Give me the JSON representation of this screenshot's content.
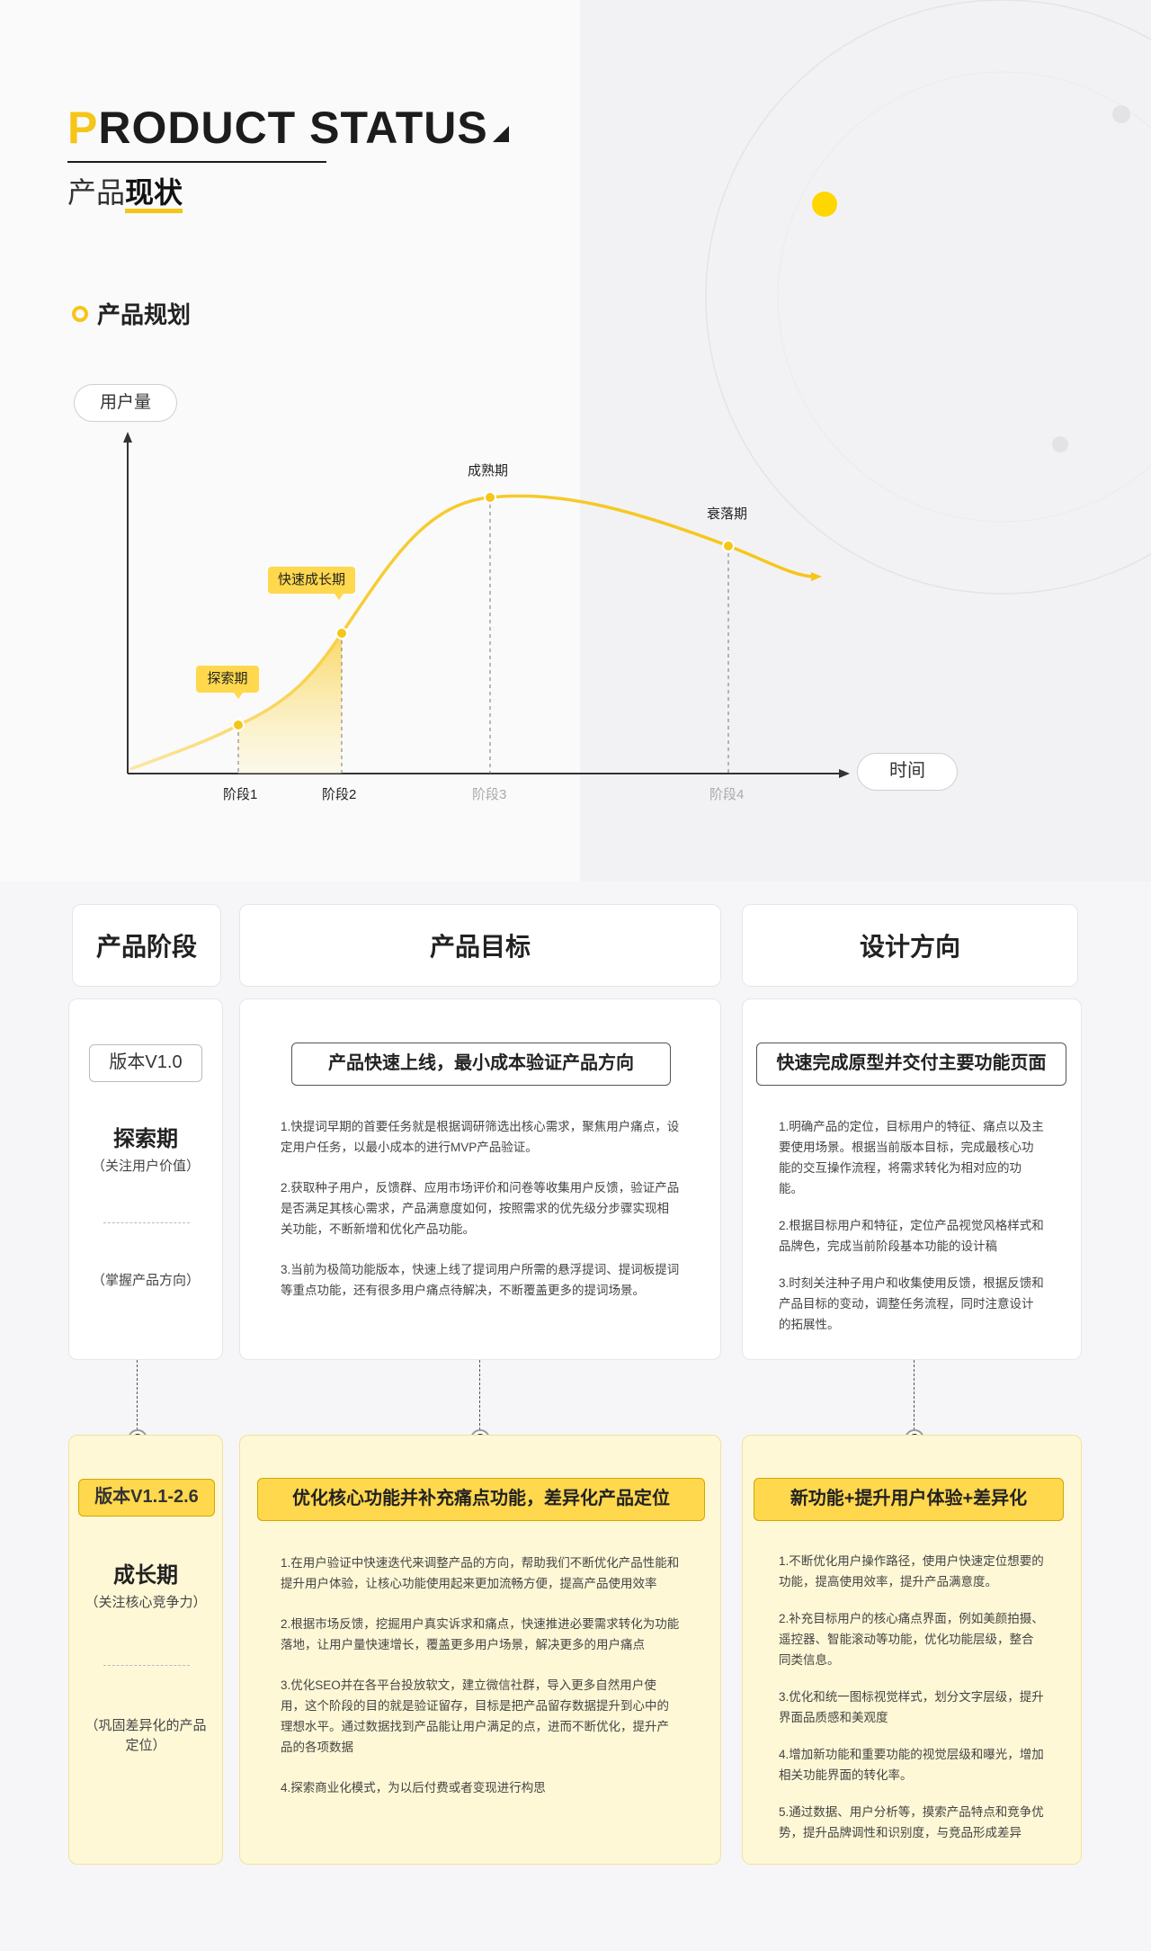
{
  "header": {
    "title_first_letter": "P",
    "title_rest": "RODUCT STATUS",
    "subtitle_plain": "产品",
    "subtitle_bold": "现状"
  },
  "section": {
    "title": "产品规划"
  },
  "chart_data": {
    "type": "line",
    "ylabel": "用户量",
    "xlabel": "时间",
    "ticks": [
      "阶段1",
      "阶段2",
      "阶段3",
      "阶段4"
    ],
    "stages": [
      {
        "name": "探索期",
        "x": 1
      },
      {
        "name": "快速成长期",
        "x": 2
      },
      {
        "name": "成熟期",
        "x": 3
      },
      {
        "name": "衰落期",
        "x": 4
      }
    ]
  },
  "table": {
    "headers": [
      "产品阶段",
      "产品目标",
      "设计方向"
    ],
    "rows": [
      {
        "version": "版本V1.0",
        "stage": "探索期",
        "stage_note1": "（关注用户价值）",
        "stage_note2": "（掌握产品方向）",
        "goal_title": "产品快速上线，最小成本验证产品方向",
        "goal_items": [
          "1.快提词早期的首要任务就是根据调研筛选出核心需求，聚焦用户痛点，设定用户任务，以最小成本的进行MVP产品验证。",
          "2.获取种子用户，反馈群、应用市场评价和问卷等收集用户反馈，验证产品是否满足其核心需求，产品满意度如何，按照需求的优先级分步骤实现相关功能，不断新增和优化产品功能。",
          "3.当前为极简功能版本，快速上线了提词用户所需的悬浮提词、提词板提词等重点功能，还有很多用户痛点待解决，不断覆盖更多的提词场景。"
        ],
        "design_title": "快速完成原型并交付主要功能页面",
        "design_items": [
          "1.明确产品的定位，目标用户的特征、痛点以及主要使用场景。根据当前版本目标，完成最核心功能的交互操作流程，将需求转化为相对应的功能。",
          "2.根据目标用户和特征，定位产品视觉风格样式和品牌色，完成当前阶段基本功能的设计稿",
          "3.时刻关注种子用户和收集使用反馈，根据反馈和产品目标的变动，调整任务流程，同时注意设计的拓展性。"
        ]
      },
      {
        "version": "版本V1.1-2.6",
        "stage": "成长期",
        "stage_note1": "（关注核心竞争力）",
        "stage_note2": "（巩固差异化的产品定位）",
        "goal_title": "优化核心功能并补充痛点功能，差异化产品定位",
        "goal_items": [
          "1.在用户验证中快速迭代来调整产品的方向，帮助我们不断优化产品性能和提升用户体验，让核心功能使用起来更加流畅方便，提高产品使用效率",
          "2.根据市场反馈，挖掘用户真实诉求和痛点，快速推进必要需求转化为功能落地，让用户量快速增长，覆盖更多用户场景，解决更多的用户痛点",
          "3.优化SEO并在各平台投放软文，建立微信社群，导入更多自然用户使用，这个阶段的目的就是验证留存，目标是把产品留存数据提升到心中的理想水平。通过数据找到产品能让用户满足的点，进而不断优化，提升产品的各项数据",
          "4.探索商业化模式，为以后付费或者变现进行构思"
        ],
        "design_title": "新功能+提升用户体验+差异化",
        "design_items": [
          "1.不断优化用户操作路径，使用户快速定位想要的功能，提高使用效率，提升产品满意度。",
          "2.补充目标用户的核心痛点界面，例如美颜拍摄、遥控器、智能滚动等功能，优化功能层级，整合同类信息。",
          "3.优化和统一图标视觉样式，划分文字层级，提升界面品质感和美观度",
          "4.增加新功能和重要功能的视觉层级和曝光，增加相关功能界面的转化率。",
          "5.通过数据、用户分析等，摸索产品特点和竞争优势，提升品牌调性和识别度，与竞品形成差异"
        ]
      }
    ]
  },
  "colors": {
    "accent": "#f5c518",
    "accent_light": "#ffd84d",
    "card_yellow": "#fff8d6"
  }
}
